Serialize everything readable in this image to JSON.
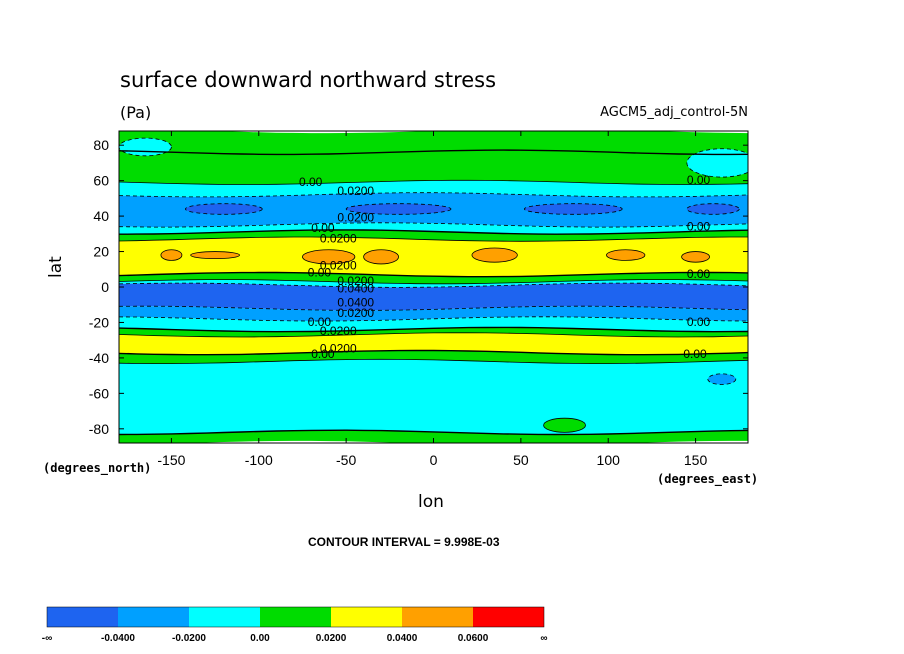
{
  "chart_data": {
    "type": "heatmap",
    "title": "surface downward northward stress",
    "units": "(Pa)",
    "run_label": "AGCM5_adj_control-5N",
    "xlabel": "lon",
    "ylabel": "lat",
    "x_units_label": "(degrees_east)",
    "y_units_label": "(degrees_north)",
    "xlim": [
      -180,
      180
    ],
    "ylim": [
      -88,
      88
    ],
    "x_ticks": [
      -150,
      -100,
      -50,
      0,
      50,
      100,
      150
    ],
    "y_ticks": [
      80,
      60,
      40,
      20,
      0,
      -20,
      -40,
      -60,
      -80
    ],
    "contour_interval": "CONTOUR INTERVAL = 9.998E-03",
    "legend": {
      "placement": "bottom",
      "labels": [
        "-∞",
        "-0.0400",
        "-0.0200",
        "0.00",
        "0.0200",
        "0.0400",
        "0.0600",
        "∞"
      ],
      "colors": [
        "#1e64f0",
        "#00a0ff",
        "#00ffff",
        "#00dc00",
        "#ffff00",
        "#ffa000",
        "#ff0000"
      ]
    },
    "bands": [
      {
        "lat_from": 88,
        "lat_to": 76,
        "level": 3
      },
      {
        "lat_from": 76,
        "lat_to": 59,
        "level": 3
      },
      {
        "lat_from": 59,
        "lat_to": 52,
        "level": 2
      },
      {
        "lat_from": 52,
        "lat_to": 35,
        "level": 1
      },
      {
        "lat_from": 35,
        "lat_to": 31,
        "level": 2
      },
      {
        "lat_from": 31,
        "lat_to": 27,
        "level": 3
      },
      {
        "lat_from": 27,
        "lat_to": 7,
        "level": 4
      },
      {
        "lat_from": 7,
        "lat_to": 3,
        "level": 3
      },
      {
        "lat_from": 3,
        "lat_to": 1,
        "level": 2
      },
      {
        "lat_from": 1,
        "lat_to": -12,
        "level": 0
      },
      {
        "lat_from": -12,
        "lat_to": -18,
        "level": 1
      },
      {
        "lat_from": -18,
        "lat_to": -24,
        "level": 2
      },
      {
        "lat_from": -24,
        "lat_to": -27,
        "level": 3
      },
      {
        "lat_from": -27,
        "lat_to": -37,
        "level": 4
      },
      {
        "lat_from": -37,
        "lat_to": -42,
        "level": 3
      },
      {
        "lat_from": -42,
        "lat_to": -82,
        "level": 2
      },
      {
        "lat_from": -82,
        "lat_to": -88,
        "level": 3
      }
    ],
    "blobs": [
      {
        "lon": -150,
        "lat": 18,
        "rlon": 6,
        "rlat": 3,
        "level": 5
      },
      {
        "lon": -125,
        "lat": 18,
        "rlon": 14,
        "rlat": 2,
        "level": 5
      },
      {
        "lon": -60,
        "lat": 17,
        "rlon": 15,
        "rlat": 4,
        "level": 5
      },
      {
        "lon": -30,
        "lat": 17,
        "rlon": 10,
        "rlat": 4,
        "level": 5
      },
      {
        "lon": 35,
        "lat": 18,
        "rlon": 13,
        "rlat": 4,
        "level": 5
      },
      {
        "lon": 110,
        "lat": 18,
        "rlon": 11,
        "rlat": 3,
        "level": 5
      },
      {
        "lon": 150,
        "lat": 17,
        "rlon": 8,
        "rlat": 3,
        "level": 5
      },
      {
        "lon": -120,
        "lat": 44,
        "rlon": 22,
        "rlat": 3,
        "level": 0
      },
      {
        "lon": -20,
        "lat": 44,
        "rlon": 30,
        "rlat": 3,
        "level": 0
      },
      {
        "lon": 80,
        "lat": 44,
        "rlon": 28,
        "rlat": 3,
        "level": 0
      },
      {
        "lon": 160,
        "lat": 44,
        "rlon": 15,
        "rlat": 3,
        "level": 0
      },
      {
        "lon": 75,
        "lat": -78,
        "rlon": 12,
        "rlat": 4,
        "level": 3
      },
      {
        "lon": 165,
        "lat": -52,
        "rlon": 8,
        "rlat": 3,
        "level": 1
      },
      {
        "lon": 165,
        "lat": 70,
        "rlon": 20,
        "rlat": 8,
        "level": 2
      },
      {
        "lon": -165,
        "lat": 79,
        "rlon": 15,
        "rlat": 5,
        "level": 2
      }
    ],
    "contour_labels": [
      {
        "text": "0.00",
        "lon": -77,
        "lat": 57
      },
      {
        "text": "0.0200",
        "lon": -55,
        "lat": 52
      },
      {
        "text": "0.00",
        "lon": 145,
        "lat": 58
      },
      {
        "text": "0.0200",
        "lon": -55,
        "lat": 37
      },
      {
        "text": "0.00",
        "lon": -70,
        "lat": 31
      },
      {
        "text": "0.0200",
        "lon": -65,
        "lat": 25
      },
      {
        "text": "0.00",
        "lon": 145,
        "lat": 32
      },
      {
        "text": "0.0200",
        "lon": -65,
        "lat": 10
      },
      {
        "text": "0.00",
        "lon": -72,
        "lat": 6
      },
      {
        "text": "0.00",
        "lon": 145,
        "lat": 5
      },
      {
        "text": "0.0200",
        "lon": -55,
        "lat": 1
      },
      {
        "text": "0.0400",
        "lon": -55,
        "lat": -3
      },
      {
        "text": "0.0400",
        "lon": -55,
        "lat": -11
      },
      {
        "text": "0.0200",
        "lon": -55,
        "lat": -17
      },
      {
        "text": "0.00",
        "lon": -72,
        "lat": -22
      },
      {
        "text": "0.0200",
        "lon": -65,
        "lat": -27
      },
      {
        "text": "0.00",
        "lon": 145,
        "lat": -22
      },
      {
        "text": "0.0200",
        "lon": -65,
        "lat": -37
      },
      {
        "text": "0.00",
        "lon": -70,
        "lat": -40
      },
      {
        "text": "0.00",
        "lon": 143,
        "lat": -40
      }
    ]
  }
}
